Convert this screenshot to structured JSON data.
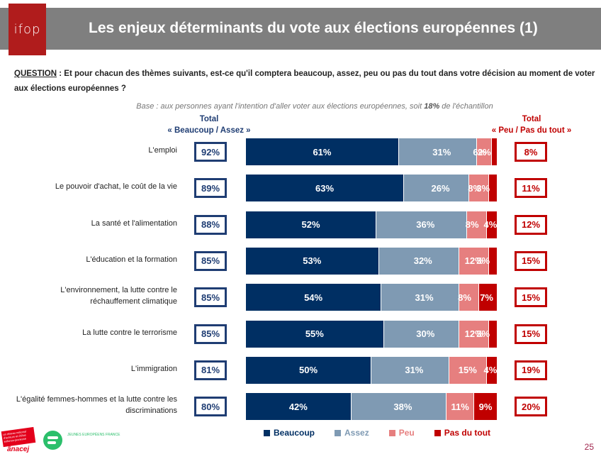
{
  "header": {
    "logo_text": "ifop",
    "title": "Les enjeux déterminants du vote aux élections européennes (1)"
  },
  "question": {
    "label": "QUESTION",
    "text": " : Et pour chacun des thèmes suivants, est-ce qu'il comptera beaucoup, assez, peu ou pas du tout dans votre décision au moment de voter aux élections européennes ?"
  },
  "base": {
    "prefix": "Base : aux personnes ayant l'intention d'aller voter aux élections européennes, soit ",
    "pct": "18%",
    "suffix": " de l'échantillon"
  },
  "totals_headers": {
    "left_line1": "Total",
    "left_line2": "« Beaucoup / Assez »",
    "right_line1": "Total",
    "right_line2": "« Peu / Pas du tout »"
  },
  "footer": {
    "page_number": "25",
    "anacej_text": "ânacej",
    "anacej_banner": "un réseau national d'acteurs et d'élus enfance-jeunesse",
    "jef_text": "JEUNES EUROPÉENS FRANCE"
  },
  "chart_data": {
    "type": "bar",
    "orientation": "horizontal-stacked-100",
    "categories": [
      "L'emploi",
      "Le pouvoir d'achat, le coût de la vie",
      "La santé et l'alimentation",
      "L'éducation et la formation",
      "L'environnement, la lutte contre le réchauffement climatique",
      "La lutte contre le terrorisme",
      "L'immigration",
      "L'égalité femmes-hommes et la lutte contre les discriminations"
    ],
    "series": [
      {
        "name": "Beaucoup",
        "color": "#002f63",
        "values": [
          61,
          63,
          52,
          53,
          54,
          55,
          50,
          42
        ]
      },
      {
        "name": "Assez",
        "color": "#7f9ab3",
        "values": [
          31,
          26,
          36,
          32,
          31,
          30,
          31,
          38
        ]
      },
      {
        "name": "Peu",
        "color": "#e67f7f",
        "values": [
          6,
          8,
          8,
          12,
          8,
          12,
          15,
          11
        ]
      },
      {
        "name": "Pas du tout",
        "color": "#c00000",
        "values": [
          2,
          3,
          4,
          3,
          7,
          3,
          4,
          9
        ]
      }
    ],
    "total_beaucoup_assez": [
      "92%",
      "89%",
      "88%",
      "85%",
      "85%",
      "85%",
      "81%",
      "80%"
    ],
    "total_peu_pas_du_tout": [
      "8%",
      "11%",
      "12%",
      "15%",
      "15%",
      "15%",
      "19%",
      "20%"
    ],
    "legend": [
      "Beaucoup",
      "Assez",
      "Peu",
      "Pas du tout"
    ],
    "legend_position": "bottom",
    "xlim": [
      0,
      100
    ],
    "title": "Les enjeux déterminants du vote aux élections européennes (1)"
  }
}
